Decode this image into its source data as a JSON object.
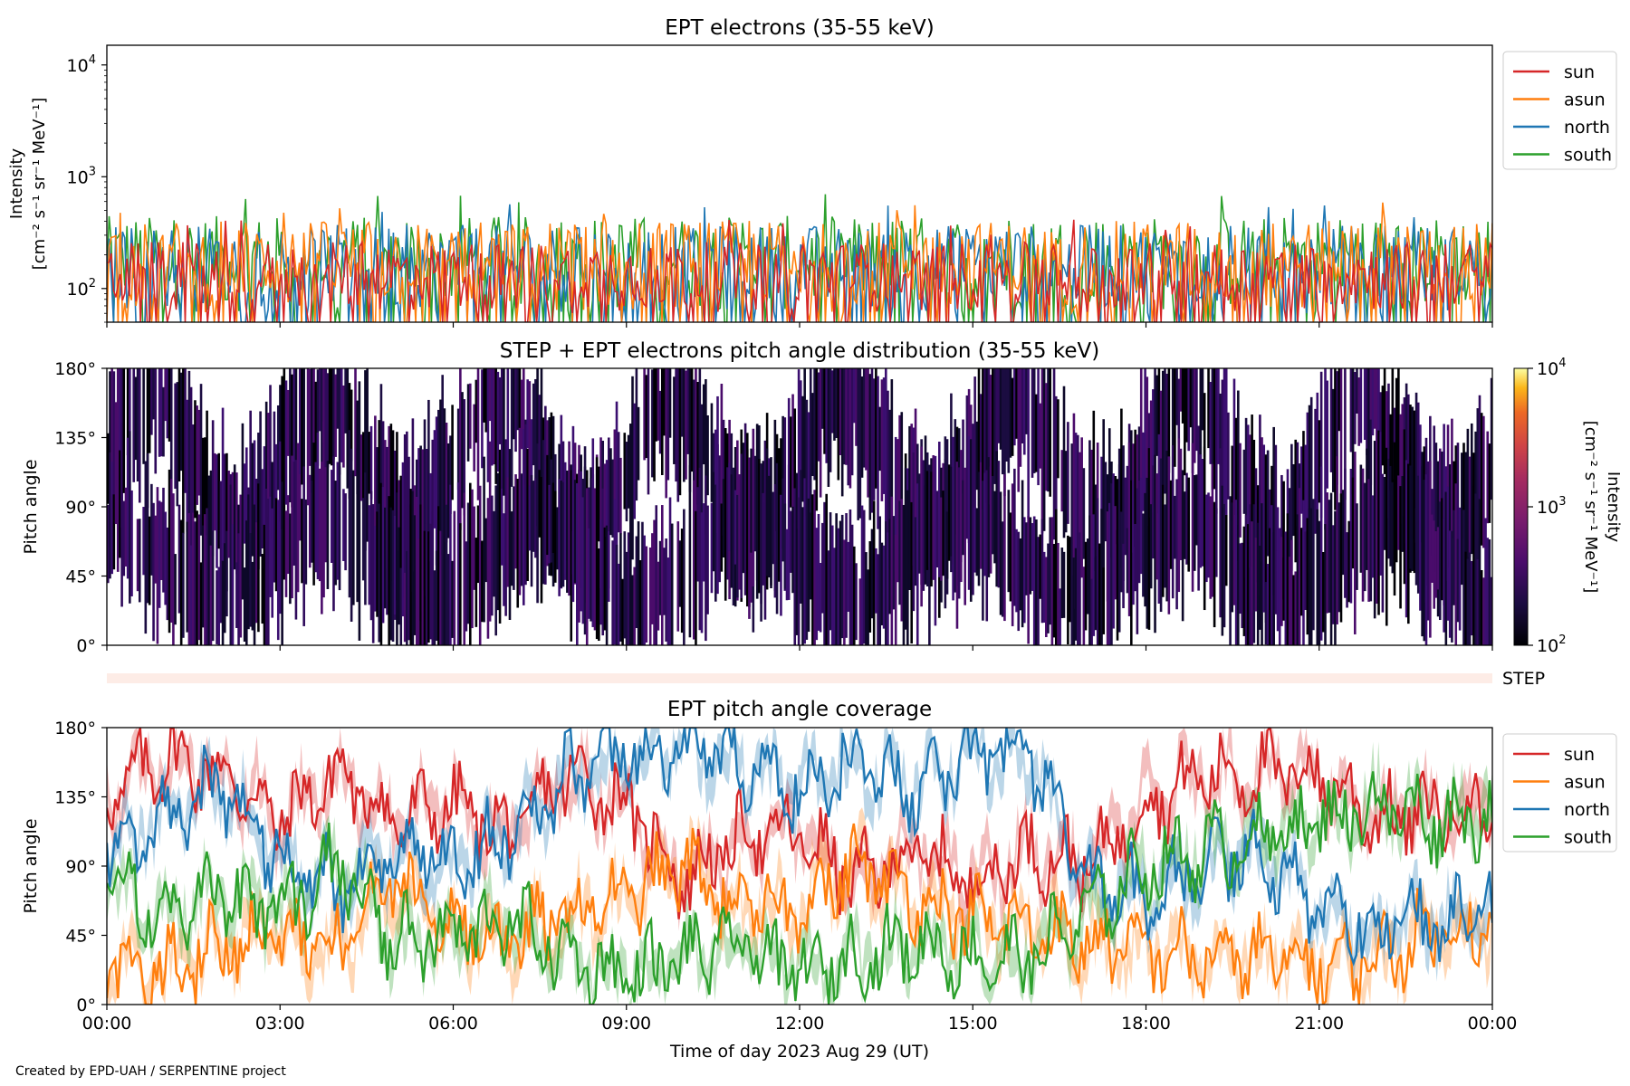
{
  "figure": {
    "credit": "Created by EPD-UAH / SERPENTINE project",
    "xlabel": "Time of day 2023 Aug 29 (UT)",
    "xticks": [
      "00:00",
      "03:00",
      "06:00",
      "09:00",
      "12:00",
      "15:00",
      "18:00",
      "21:00",
      "00:00"
    ]
  },
  "colors": {
    "sun": "#d62728",
    "asun": "#ff7f0e",
    "north": "#1f77b4",
    "south": "#2ca02c"
  },
  "chart_data": [
    {
      "id": "intensity",
      "type": "line",
      "title": "EPT electrons (35-55 keV)",
      "ylabel_line1": "Intensity",
      "ylabel_line2": "[cm⁻² s⁻¹ sr⁻¹ MeV⁻¹]",
      "yscale": "log",
      "ylim": [
        50,
        15000
      ],
      "yticks": [
        {
          "value": 100,
          "base": "10",
          "exp": "2"
        },
        {
          "value": 1000,
          "base": "10",
          "exp": "3"
        },
        {
          "value": 10000,
          "base": "10",
          "exp": "4"
        }
      ],
      "x_range_hours": [
        0,
        24
      ],
      "series": [
        {
          "name": "sun",
          "approx_range": [
            50,
            420
          ],
          "samples": 620
        },
        {
          "name": "asun",
          "approx_range": [
            50,
            650
          ],
          "samples": 620
        },
        {
          "name": "north",
          "approx_range": [
            50,
            600
          ],
          "samples": 620
        },
        {
          "name": "south",
          "approx_range": [
            50,
            720
          ],
          "samples": 620
        }
      ],
      "draw_order": [
        "south",
        "north",
        "asun",
        "sun"
      ],
      "legend": [
        "sun",
        "asun",
        "north",
        "south"
      ],
      "legend_position": "outside-right"
    },
    {
      "id": "pad",
      "type": "heatmap",
      "title": "STEP + EPT electrons pitch angle distribution (35-55 keV)",
      "ylabel": "Pitch angle",
      "ylim": [
        0,
        180
      ],
      "yticks": [
        "0°",
        "45°",
        "90°",
        "135°",
        "180°"
      ],
      "colorbar": {
        "colormap": "inferno",
        "scale": "log",
        "range": [
          100,
          10000
        ],
        "ticks": [
          {
            "base": "10",
            "exp": "2"
          },
          {
            "base": "10",
            "exp": "3"
          },
          {
            "base": "10",
            "exp": "4"
          }
        ],
        "label_line1": "Intensity",
        "label_line2": "[cm⁻² s⁻¹ sr⁻¹ MeV⁻¹]"
      },
      "note": "dark purple pitch-angle bands (~100-300) with white gaps"
    },
    {
      "id": "step",
      "type": "bar",
      "label": "STEP"
    },
    {
      "id": "coverage",
      "type": "line",
      "title": "EPT pitch angle coverage",
      "ylabel": "Pitch angle",
      "ylim": [
        0,
        180
      ],
      "yticks": [
        "0°",
        "45°",
        "90°",
        "135°",
        "180°"
      ],
      "legend": [
        "sun",
        "asun",
        "north",
        "south"
      ],
      "legend_position": "outside-right",
      "series": [
        {
          "name": "sun",
          "x_hours": [
            0,
            1,
            2,
            3,
            4,
            5,
            6,
            7,
            8,
            9,
            10,
            11,
            12,
            13,
            14,
            15,
            16,
            17,
            18,
            19,
            20,
            21,
            22,
            23,
            24
          ],
          "values": [
            135,
            160,
            150,
            120,
            150,
            120,
            130,
            110,
            150,
            130,
            80,
            110,
            110,
            80,
            100,
            80,
            100,
            90,
            130,
            150,
            150,
            150,
            120,
            125,
            130
          ]
        },
        {
          "name": "asun",
          "x_hours": [
            0,
            1,
            2,
            3,
            4,
            5,
            6,
            7,
            8,
            9,
            10,
            11,
            12,
            13,
            14,
            15,
            16,
            17,
            18,
            19,
            20,
            21,
            22,
            23,
            24
          ],
          "values": [
            30,
            20,
            40,
            45,
            35,
            80,
            50,
            40,
            60,
            70,
            90,
            60,
            65,
            90,
            70,
            55,
            50,
            40,
            35,
            30,
            30,
            25,
            30,
            50,
            50
          ]
        },
        {
          "name": "north",
          "x_hours": [
            0,
            1,
            2,
            3,
            4,
            5,
            6,
            7,
            8,
            9,
            10,
            11,
            12,
            13,
            14,
            15,
            16,
            17,
            18,
            19,
            20,
            21,
            22,
            23,
            24
          ],
          "values": [
            100,
            120,
            145,
            95,
            75,
            100,
            90,
            110,
            150,
            160,
            170,
            155,
            140,
            160,
            140,
            165,
            160,
            80,
            70,
            90,
            100,
            60,
            50,
            55,
            60
          ]
        },
        {
          "name": "south",
          "x_hours": [
            0,
            1,
            2,
            3,
            4,
            5,
            6,
            7,
            8,
            9,
            10,
            11,
            12,
            13,
            14,
            15,
            16,
            17,
            18,
            19,
            20,
            21,
            22,
            23,
            24
          ],
          "values": [
            80,
            60,
            70,
            60,
            90,
            40,
            45,
            55,
            30,
            20,
            30,
            40,
            20,
            30,
            40,
            30,
            30,
            60,
            90,
            100,
            110,
            120,
            130,
            120,
            125
          ]
        }
      ],
      "band_halfwidth_deg": 10
    }
  ]
}
